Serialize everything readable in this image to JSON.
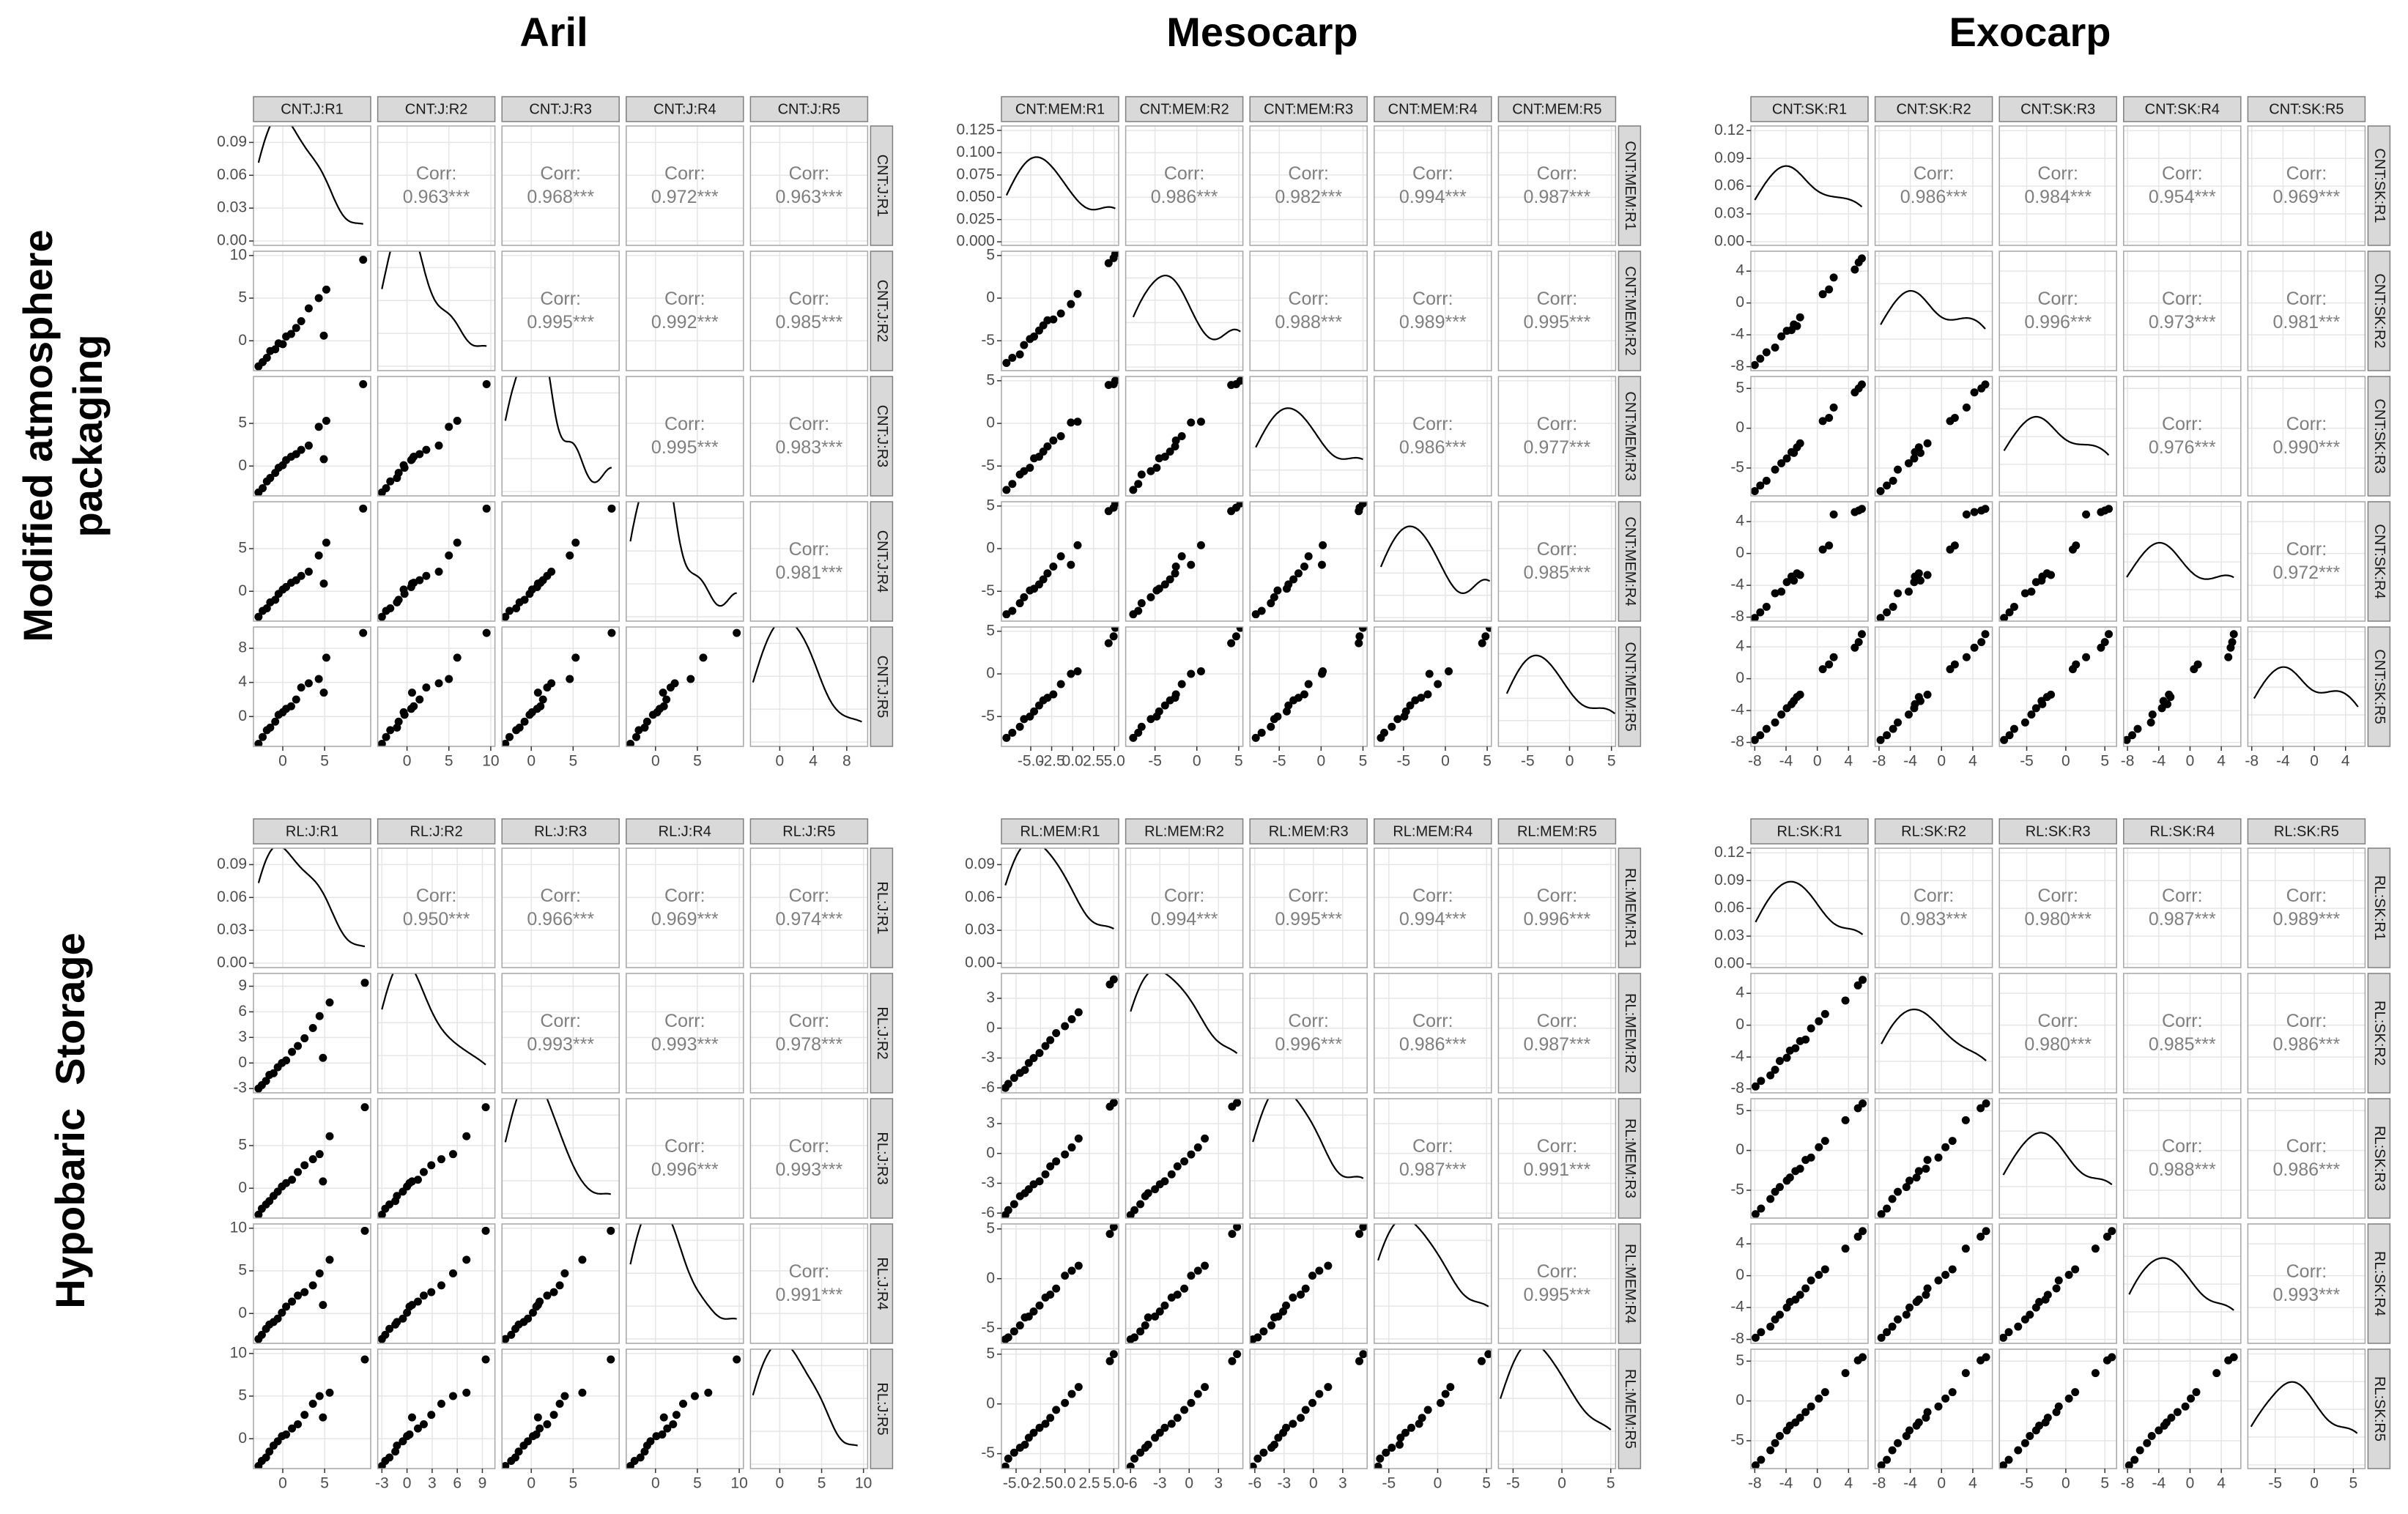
{
  "column_titles": [
    "Aril",
    "Mesocarp",
    "Exocarp"
  ],
  "row_titles": [
    [
      "Modified atmosphere",
      "packaging"
    ],
    [
      "Hypobaric  Storage"
    ]
  ],
  "corr_title": "Corr:",
  "chart_data": [
    {
      "type": "pairs",
      "xlim": [
        -3.5,
        10.5
      ],
      "ylim": [
        -0.004,
        0.105
      ],
      "yticks": [
        {
          "value": 0,
          "label": "0.00"
        },
        0.03,
        0.06,
        0.09
      ],
      "corr_labels": [
        "0.963***",
        "0.968***",
        "0.972***",
        "0.963***",
        "0.995***",
        "0.992***",
        "0.985***",
        "0.995***",
        "0.983***",
        "0.981***"
      ],
      "series": [
        {
          "name": "CNT:J:R1",
          "ticks": [
            0,
            5
          ],
          "values": [
            -2.9,
            -2.4,
            -1.9,
            -1.5,
            -0.9,
            -0.5,
            0,
            0.4,
            1,
            1.6,
            2.2,
            3.1,
            4.3,
            4.9,
            5.2,
            9.6
          ]
        },
        {
          "name": "CNT:J:R2",
          "ticks": [
            0,
            5,
            10
          ],
          "values": [
            -3.0,
            -2.5,
            -2.0,
            -1.2,
            -1.0,
            -0.3,
            -0.4,
            0.5,
            0.8,
            1.5,
            2.3,
            3.8,
            5.0,
            0.6,
            6.0,
            9.5
          ]
        },
        {
          "name": "CNT:J:R3",
          "ticks": [
            0,
            5
          ],
          "values": [
            -3.1,
            -2.6,
            -1.8,
            -1.4,
            -0.8,
            -0.2,
            0.1,
            0.7,
            1.1,
            1.4,
            1.9,
            2.4,
            4.6,
            0.8,
            5.3,
            9.6
          ]
        },
        {
          "name": "CNT:J:R4",
          "ticks": [
            0,
            5
          ],
          "values": [
            -3.0,
            -2.3,
            -2.0,
            -1.3,
            -1.0,
            -0.3,
            0.2,
            0.5,
            1.0,
            1.3,
            1.8,
            2.3,
            4.2,
            0.9,
            5.7,
            9.7
          ]
        },
        {
          "name": "CNT:J:R5",
          "ticks": [
            0,
            4,
            8
          ],
          "values": [
            -3.2,
            -2.4,
            -1.6,
            -1.3,
            -0.6,
            0.2,
            0.5,
            0.9,
            1.2,
            2.0,
            3.4,
            3.9,
            4.4,
            2.8,
            6.9,
            9.8
          ]
        }
      ]
    },
    {
      "type": "pairs",
      "xlim": [
        -8.5,
        5.5
      ],
      "ylim": [
        -0.004,
        0.13
      ],
      "yticks": [
        {
          "value": 0,
          "label": "0.000"
        },
        0.025,
        {
          "value": 0.05,
          "label": "0.050"
        },
        0.075,
        {
          "value": 0.1,
          "label": "0.100"
        },
        0.125
      ],
      "corr_labels": [
        "0.986***",
        "0.982***",
        "0.994***",
        "0.987***",
        "0.988***",
        "0.989***",
        "0.995***",
        "0.986***",
        "0.977***",
        "0.985***"
      ],
      "series": [
        {
          "name": "CNT:MEM:R1",
          "ticks": [
            {
              "value": -5,
              "label": "-5.0"
            },
            -2.5,
            {
              "value": 0,
              "label": "0.0"
            },
            2.5,
            {
              "value": 5,
              "label": "5.0"
            }
          ],
          "values": [
            -7.9,
            -7.2,
            -6.3,
            -5.8,
            -5.1,
            -4.6,
            -4.0,
            -3.5,
            -3.0,
            -2.3,
            -1.4,
            -0.2,
            0.6,
            4.3,
            4.9,
            5.1
          ]
        },
        {
          "name": "CNT:MEM:R2",
          "ticks": [
            -5,
            0,
            5
          ],
          "values": [
            -7.6,
            -7.0,
            -6.6,
            -5.5,
            -4.8,
            -4.5,
            -3.8,
            -3.2,
            -2.6,
            -2.5,
            -1.8,
            -0.7,
            0.5,
            4.1,
            4.7,
            5.2
          ]
        },
        {
          "name": "CNT:MEM:R3",
          "ticks": [
            -5,
            0,
            5
          ],
          "values": [
            -7.8,
            -7.1,
            -6.0,
            -5.6,
            -5.2,
            -4.1,
            -3.9,
            -3.3,
            -2.7,
            -2.0,
            -1.5,
            0.1,
            0.2,
            4.5,
            4.6,
            5.0
          ]
        },
        {
          "name": "CNT:MEM:R4",
          "ticks": [
            -5,
            0,
            5
          ],
          "values": [
            -7.7,
            -7.3,
            -6.4,
            -5.7,
            -4.9,
            -4.7,
            -4.2,
            -3.6,
            -2.9,
            -2.1,
            -0.9,
            -1.9,
            0.4,
            4.4,
            4.8,
            5.3
          ]
        },
        {
          "name": "CNT:MEM:R5",
          "ticks": [
            -5,
            0,
            5
          ],
          "values": [
            -7.5,
            -6.9,
            -6.2,
            -5.3,
            -5.0,
            -4.4,
            -3.7,
            -3.1,
            -2.8,
            -2.4,
            -1.2,
            0.0,
            0.3,
            3.6,
            4.4,
            5.4
          ]
        }
      ]
    },
    {
      "type": "pairs",
      "xlim": [
        -8.5,
        6.5
      ],
      "ylim": [
        -0.004,
        0.125
      ],
      "yticks": [
        {
          "value": 0,
          "label": "0.00"
        },
        0.03,
        0.06,
        0.09,
        0.12
      ],
      "corr_labels": [
        "0.986***",
        "0.984***",
        "0.954***",
        "0.969***",
        "0.996***",
        "0.973***",
        "0.981***",
        "0.976***",
        "0.990***",
        "0.972***"
      ],
      "series": [
        {
          "name": "CNT:SK:R1",
          "ticks": [
            -8,
            -4,
            0,
            4
          ],
          "values": [
            -8.0,
            -7.3,
            -6.5,
            -5.4,
            -4.6,
            -3.9,
            -3.3,
            -3.0,
            -2.6,
            -2.2,
            0.7,
            1.5,
            2.1,
            4.8,
            5.3,
            5.7
          ]
        },
        {
          "name": "CNT:SK:R2",
          "ticks": [
            -8,
            -4,
            0,
            4
          ],
          "values": [
            -7.8,
            -7.0,
            -6.2,
            -5.6,
            -4.2,
            -3.5,
            -3.4,
            -2.7,
            -2.9,
            -1.8,
            1.1,
            1.7,
            3.2,
            4.2,
            5.1,
            5.6
          ]
        },
        {
          "name": "CNT:SK:R3",
          "ticks": [
            -5,
            0,
            5
          ],
          "values": [
            -7.9,
            -7.2,
            -6.6,
            -5.2,
            -4.4,
            -3.8,
            -3.0,
            -3.1,
            -2.4,
            -1.9,
            0.9,
            1.3,
            2.6,
            4.5,
            5.0,
            5.5
          ]
        },
        {
          "name": "CNT:SK:R4",
          "ticks": [
            -8,
            -4,
            0,
            4
          ],
          "values": [
            -8.1,
            -7.4,
            -6.7,
            -5.0,
            -4.8,
            -3.6,
            -2.9,
            -3.4,
            -2.5,
            -2.7,
            0.5,
            1.0,
            4.9,
            5.2,
            5.4,
            5.6
          ]
        },
        {
          "name": "CNT:SK:R5",
          "ticks": [
            -8,
            -4,
            0,
            4
          ],
          "values": [
            -7.7,
            -7.1,
            -6.3,
            -5.5,
            -4.5,
            -3.7,
            -3.2,
            -2.8,
            -2.3,
            -2.0,
            1.2,
            1.8,
            2.7,
            3.9,
            4.6,
            5.6
          ]
        }
      ]
    },
    {
      "type": "pairs",
      "xlim": [
        -3.5,
        10.5
      ],
      "ylim": [
        -0.004,
        0.105
      ],
      "yticks": [
        {
          "value": 0,
          "label": "0.00"
        },
        0.03,
        0.06,
        0.09
      ],
      "corr_labels": [
        "0.950***",
        "0.966***",
        "0.969***",
        "0.974***",
        "0.993***",
        "0.993***",
        "0.978***",
        "0.996***",
        "0.993***",
        "0.991***"
      ],
      "series": [
        {
          "name": "RL:J:R1",
          "ticks": [
            0,
            5
          ],
          "values": [
            -2.9,
            -2.5,
            -2.0,
            -1.6,
            -1.1,
            -0.6,
            -0.1,
            0.4,
            1.1,
            1.8,
            2.6,
            3.6,
            4.4,
            4.8,
            5.6,
            9.8
          ]
        },
        {
          "name": "RL:J:R2",
          "ticks": [
            -3,
            0,
            3,
            6,
            9
          ],
          "values": [
            -3.0,
            -2.6,
            -2.1,
            -1.4,
            -1.2,
            -0.5,
            0.0,
            0.3,
            1.3,
            2.0,
            2.9,
            4.1,
            5.5,
            0.6,
            7.1,
            9.4
          ]
        },
        {
          "name": "RL:J:R3",
          "ticks": [
            0,
            5
          ],
          "values": [
            -3.1,
            -2.4,
            -1.9,
            -1.5,
            -0.9,
            -0.4,
            0.2,
            0.6,
            1.0,
            1.9,
            2.7,
            3.4,
            4.0,
            0.8,
            6.1,
            9.5
          ]
        },
        {
          "name": "RL:J:R4",
          "ticks": [
            0,
            5,
            10
          ],
          "values": [
            -3.0,
            -2.5,
            -1.8,
            -1.3,
            -1.0,
            -0.6,
            0.1,
            0.8,
            1.4,
            2.1,
            2.5,
            3.3,
            4.7,
            1.0,
            6.3,
            9.7
          ]
        },
        {
          "name": "RL:J:R5",
          "ticks": [
            0,
            5,
            10
          ],
          "values": [
            -3.2,
            -2.6,
            -2.2,
            -1.5,
            -0.8,
            -0.3,
            0.3,
            0.5,
            1.2,
            1.7,
            2.8,
            4.1,
            5.0,
            2.5,
            5.4,
            9.3
          ]
        }
      ]
    },
    {
      "type": "pairs",
      "xlim": [
        -6.5,
        5.5
      ],
      "ylim": [
        -0.004,
        0.105
      ],
      "yticks": [
        {
          "value": 0,
          "label": "0.00"
        },
        0.03,
        0.06,
        0.09
      ],
      "corr_labels": [
        "0.994***",
        "0.995***",
        "0.994***",
        "0.996***",
        "0.996***",
        "0.986***",
        "0.987***",
        "0.987***",
        "0.991***",
        "0.995***"
      ],
      "series": [
        {
          "name": "RL:MEM:R1",
          "ticks": [
            {
              "value": -5,
              "label": "-5.0"
            },
            -2.5,
            {
              "value": 0,
              "label": "0.0"
            },
            2.5,
            {
              "value": 5,
              "label": "5.0"
            }
          ],
          "values": [
            -6.1,
            -5.8,
            -5.2,
            -4.6,
            -4.1,
            -3.7,
            -3.2,
            -2.6,
            -2.0,
            -1.5,
            -0.9,
            0.0,
            0.7,
            1.4,
            4.6,
            5.0
          ]
        },
        {
          "name": "RL:MEM:R2",
          "ticks": [
            -6,
            -3,
            0,
            3
          ],
          "values": [
            -6.0,
            -5.6,
            -5.0,
            -4.5,
            -4.2,
            -3.5,
            -3.0,
            -2.5,
            -1.8,
            -1.2,
            -0.5,
            0.2,
            0.9,
            1.6,
            4.4,
            4.9
          ]
        },
        {
          "name": "RL:MEM:R3",
          "ticks": [
            -6,
            -3,
            0,
            3
          ],
          "values": [
            -6.2,
            -5.7,
            -5.1,
            -4.3,
            -4.0,
            -3.6,
            -3.1,
            -2.8,
            -2.1,
            -1.3,
            -0.8,
            -0.1,
            0.6,
            1.5,
            4.7,
            5.1
          ]
        },
        {
          "name": "RL:MEM:R4",
          "ticks": [
            -5,
            0,
            5
          ],
          "values": [
            -6.1,
            -5.9,
            -5.3,
            -4.7,
            -3.9,
            -3.8,
            -3.3,
            -2.7,
            -1.9,
            -1.6,
            -1.0,
            0.3,
            0.8,
            1.3,
            4.5,
            5.2
          ]
        },
        {
          "name": "RL:MEM:R5",
          "ticks": [
            -5,
            0,
            5
          ],
          "values": [
            -6.3,
            -5.5,
            -4.9,
            -4.4,
            -4.1,
            -3.4,
            -2.9,
            -2.4,
            -2.0,
            -1.4,
            -0.6,
            0.1,
            1.0,
            1.7,
            4.3,
            5.0
          ]
        }
      ]
    },
    {
      "type": "pairs",
      "xlim": [
        -8.5,
        6.5
      ],
      "ylim": [
        -0.004,
        0.125
      ],
      "yticks": [
        {
          "value": 0,
          "label": "0.00"
        },
        0.03,
        0.06,
        0.09,
        0.12
      ],
      "corr_labels": [
        "0.983***",
        "0.980***",
        "0.987***",
        "0.989***",
        "0.980***",
        "0.985***",
        "0.986***",
        "0.988***",
        "0.986***",
        "0.993***"
      ],
      "series": [
        {
          "name": "RL:SK:R1",
          "ticks": [
            -8,
            -4,
            0,
            4
          ],
          "values": [
            -7.9,
            -7.2,
            -6.0,
            -5.4,
            -4.8,
            -3.9,
            -3.5,
            -2.8,
            -2.2,
            -1.5,
            -0.8,
            0.2,
            1.0,
            3.6,
            5.2,
            5.8
          ]
        },
        {
          "name": "RL:SK:R2",
          "ticks": [
            -8,
            -4,
            0,
            4
          ],
          "values": [
            -7.7,
            -7.0,
            -6.3,
            -5.6,
            -4.5,
            -4.1,
            -3.2,
            -2.9,
            -2.0,
            -1.8,
            -0.4,
            0.5,
            1.4,
            3.1,
            5.0,
            5.7
          ]
        },
        {
          "name": "RL:SK:R3",
          "ticks": [
            -5,
            0,
            5
          ],
          "values": [
            -8.0,
            -7.3,
            -6.1,
            -5.2,
            -4.6,
            -3.8,
            -3.4,
            -2.6,
            -2.3,
            -1.2,
            -0.9,
            0.4,
            1.2,
            3.8,
            5.3,
            5.9
          ]
        },
        {
          "name": "RL:SK:R4",
          "ticks": [
            -8,
            -4,
            0,
            4
          ],
          "values": [
            -7.8,
            -7.1,
            -6.4,
            -5.5,
            -4.9,
            -4.0,
            -3.3,
            -3.0,
            -2.4,
            -1.6,
            -0.6,
            0.1,
            0.8,
            3.4,
            4.9,
            5.6
          ]
        },
        {
          "name": "RL:SK:R5",
          "ticks": [
            -5,
            0,
            5
          ],
          "values": [
            -8.1,
            -7.4,
            -6.2,
            -5.3,
            -4.4,
            -3.7,
            -3.1,
            -2.7,
            -2.1,
            -1.4,
            -0.7,
            0.3,
            1.1,
            3.5,
            5.1,
            5.5
          ]
        }
      ]
    }
  ]
}
